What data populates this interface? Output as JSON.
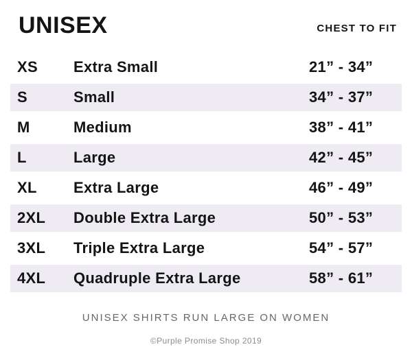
{
  "header": {
    "title": "UNISEX",
    "column_label": "CHEST TO FIT"
  },
  "table": {
    "rows": [
      {
        "code": "XS",
        "name": "Extra Small",
        "range": "21” - 34”",
        "shaded": false
      },
      {
        "code": "S",
        "name": "Small",
        "range": "34” - 37”",
        "shaded": true
      },
      {
        "code": "M",
        "name": "Medium",
        "range": "38” - 41”",
        "shaded": false
      },
      {
        "code": "L",
        "name": "Large",
        "range": "42” - 45”",
        "shaded": true
      },
      {
        "code": "XL",
        "name": "Extra Large",
        "range": "46” - 49”",
        "shaded": false
      },
      {
        "code": "2XL",
        "name": "Double Extra Large",
        "range": "50” - 53”",
        "shaded": true
      },
      {
        "code": "3XL",
        "name": "Triple Extra Large",
        "range": "54” - 57”",
        "shaded": false
      },
      {
        "code": "4XL",
        "name": "Quadruple Extra Large",
        "range": "58” - 61”",
        "shaded": true
      }
    ]
  },
  "footer": {
    "note": "UNISEX SHIRTS RUN LARGE ON WOMEN",
    "copyright": "©Purple Promise Shop 2019"
  },
  "colors": {
    "row_shade": "#efebf3",
    "text": "#141414",
    "note_gray": "#67676b",
    "copyright_gray": "#8c8c8c"
  }
}
